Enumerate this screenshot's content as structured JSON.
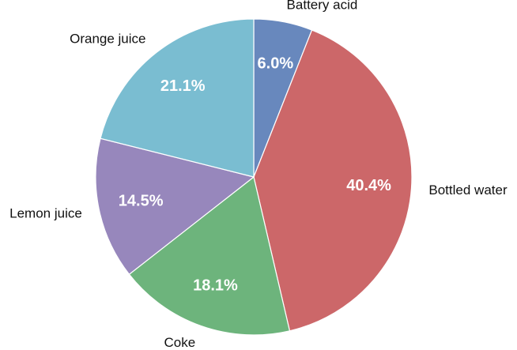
{
  "chart_data": {
    "type": "pie",
    "title": "",
    "start": "12 o'clock",
    "direction": "clockwise",
    "slices": [
      {
        "label": "Battery acid",
        "value": 6.0,
        "display": "6.0%",
        "color": "#6888bd"
      },
      {
        "label": "Bottled water",
        "value": 40.4,
        "display": "40.4%",
        "color": "#cc6769"
      },
      {
        "label": "Coke",
        "value": 18.1,
        "display": "18.1%",
        "color": "#6db47c"
      },
      {
        "label": "Lemon juice",
        "value": 14.5,
        "display": "14.5%",
        "color": "#9787bc"
      },
      {
        "label": "Orange juice",
        "value": 21.1,
        "display": "21.1%",
        "color": "#7abdd1"
      }
    ]
  }
}
